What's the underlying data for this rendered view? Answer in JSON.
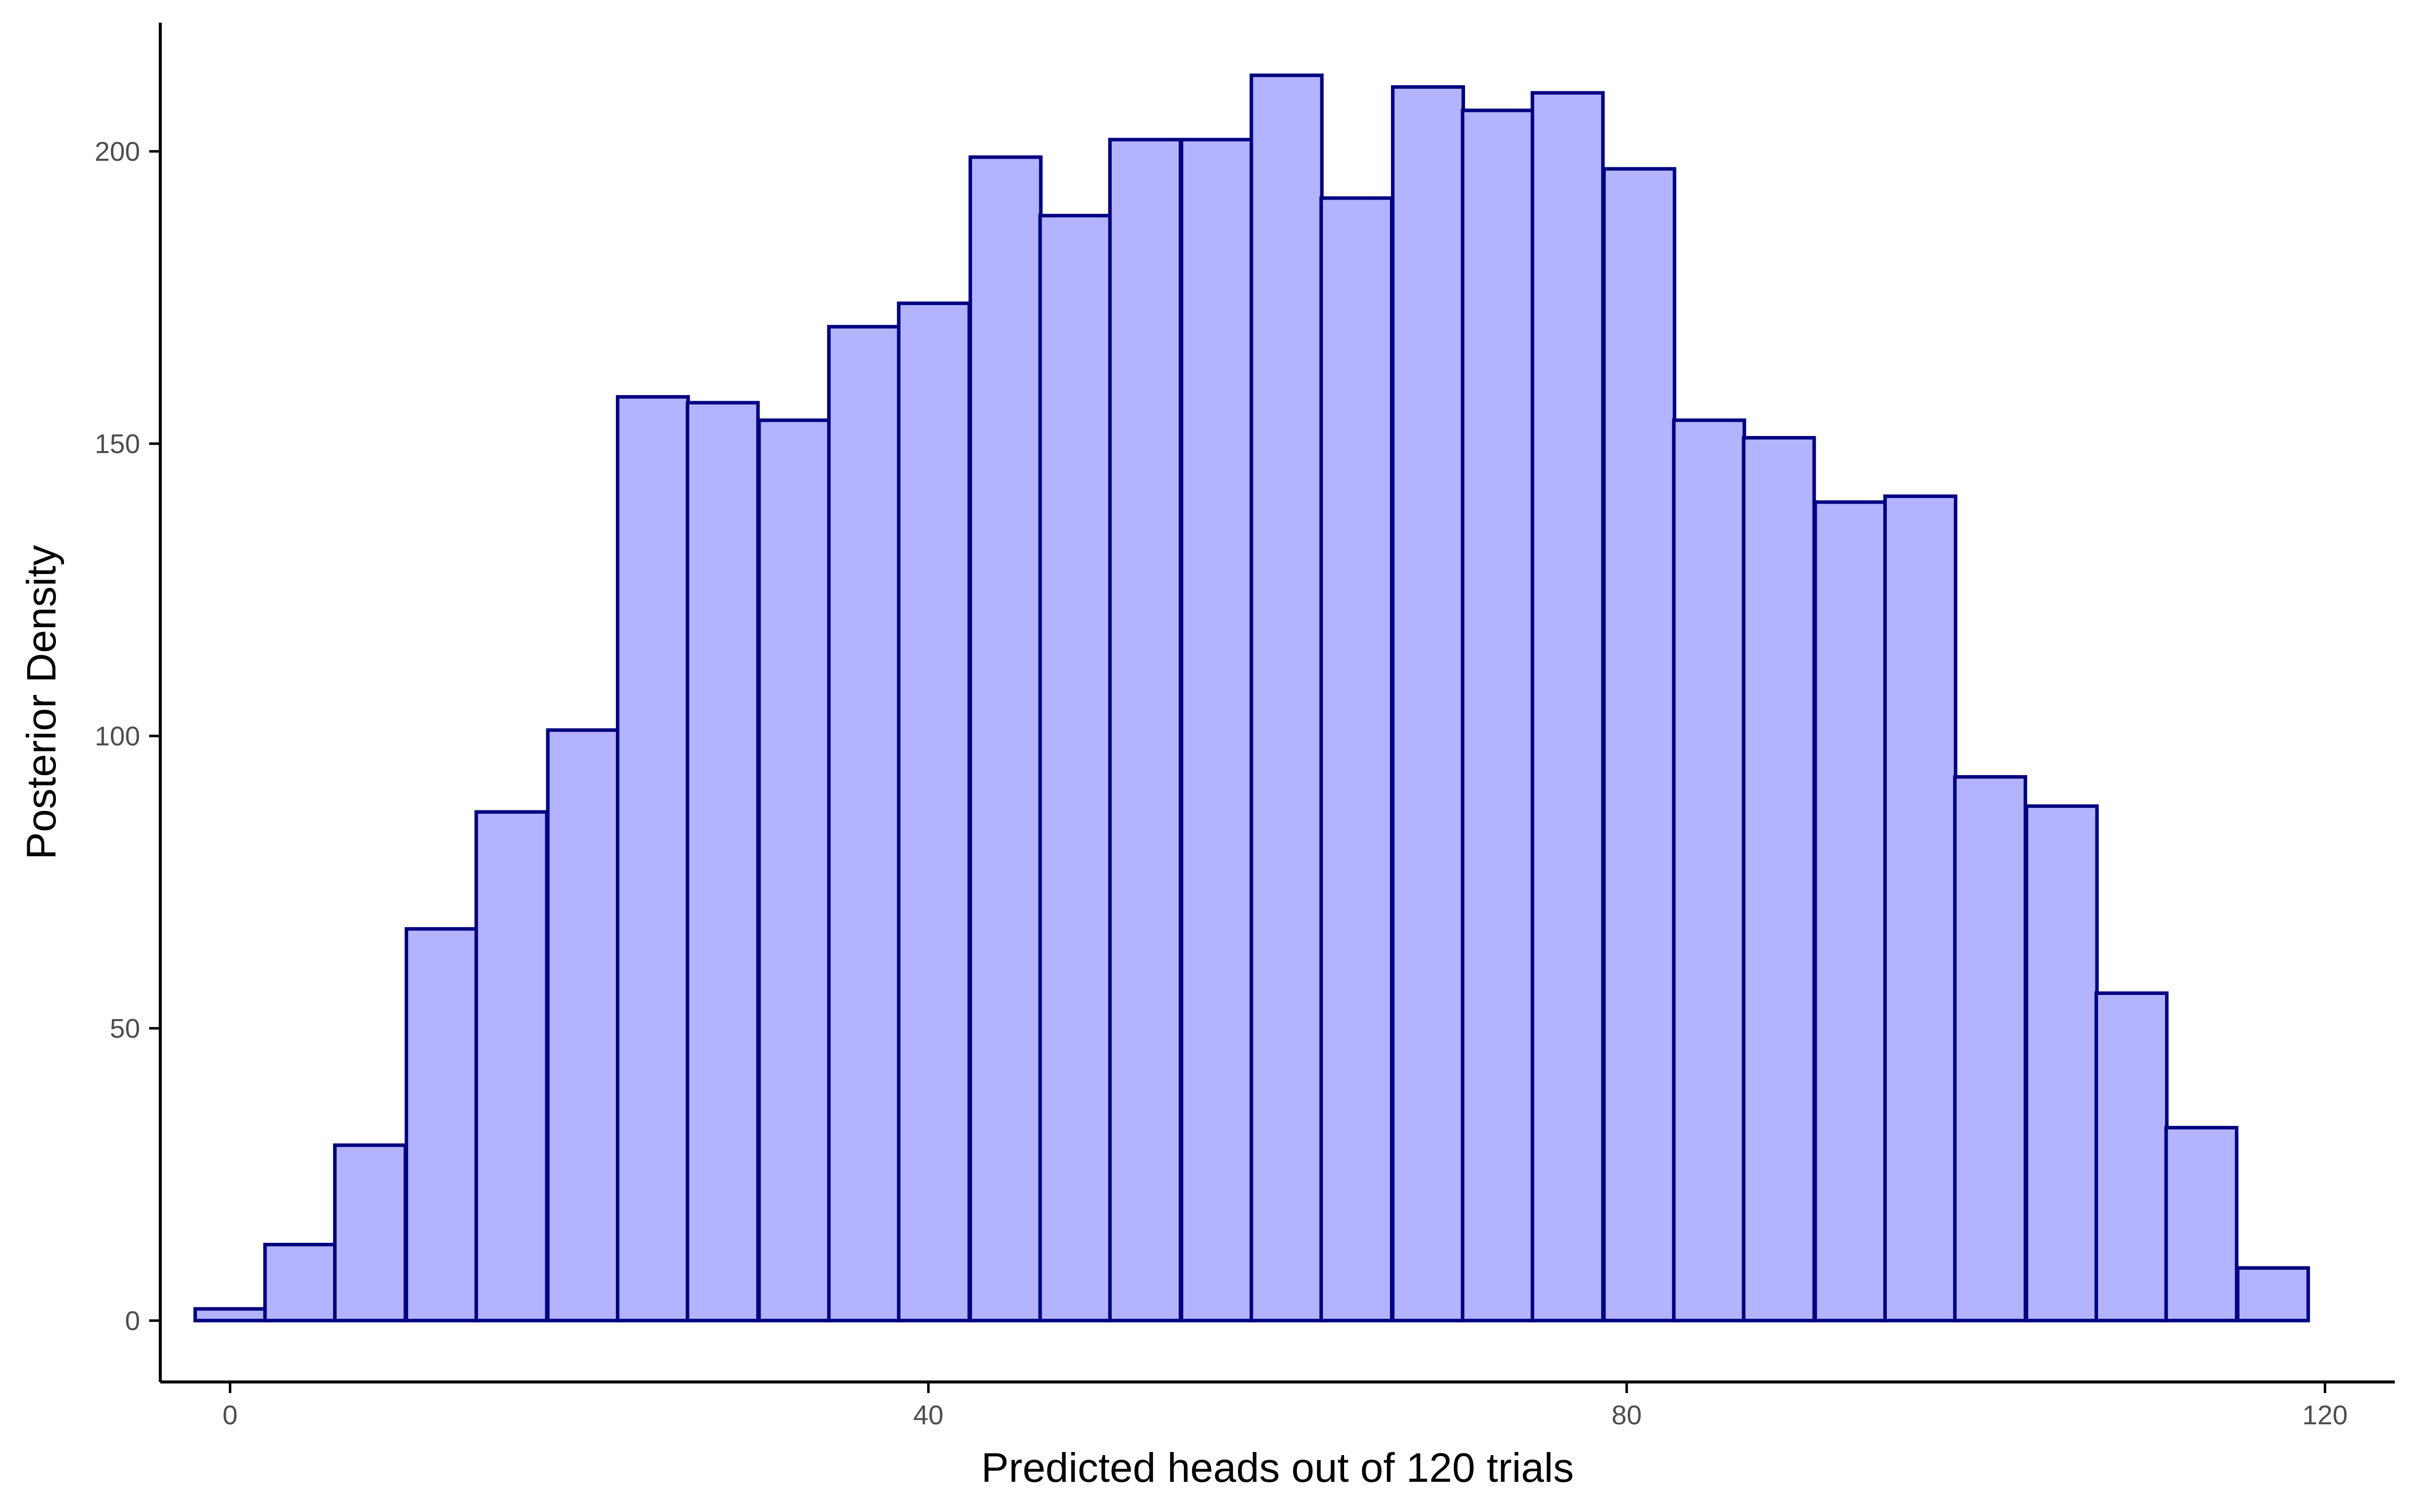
{
  "chart_data": {
    "type": "bar",
    "subtype": "histogram",
    "xlabel": "Predicted heads out of 120 trials",
    "ylabel": "Posterior Density",
    "xlim": [
      -4,
      124
    ],
    "ylim": [
      -10.5,
      222
    ],
    "x_ticks": [
      0,
      40,
      80,
      120
    ],
    "y_ticks": [
      0,
      50,
      100,
      150,
      200
    ],
    "grid": false,
    "legend": "none",
    "bin_width": 4.04,
    "bins": [
      {
        "start": -2.0,
        "value": 2
      },
      {
        "start": 2.0,
        "value": 13
      },
      {
        "start": 6.0,
        "value": 30
      },
      {
        "start": 10.1,
        "value": 67
      },
      {
        "start": 14.1,
        "value": 87
      },
      {
        "start": 18.2,
        "value": 101
      },
      {
        "start": 22.2,
        "value": 158
      },
      {
        "start": 26.2,
        "value": 157
      },
      {
        "start": 30.3,
        "value": 154
      },
      {
        "start": 34.3,
        "value": 170
      },
      {
        "start": 38.3,
        "value": 174
      },
      {
        "start": 42.4,
        "value": 199
      },
      {
        "start": 46.4,
        "value": 189
      },
      {
        "start": 50.4,
        "value": 202
      },
      {
        "start": 54.5,
        "value": 202
      },
      {
        "start": 58.5,
        "value": 213
      },
      {
        "start": 62.5,
        "value": 192
      },
      {
        "start": 66.6,
        "value": 211
      },
      {
        "start": 70.6,
        "value": 207
      },
      {
        "start": 74.6,
        "value": 210
      },
      {
        "start": 78.7,
        "value": 197
      },
      {
        "start": 82.7,
        "value": 154
      },
      {
        "start": 86.7,
        "value": 151
      },
      {
        "start": 90.8,
        "value": 140
      },
      {
        "start": 94.8,
        "value": 141
      },
      {
        "start": 98.8,
        "value": 93
      },
      {
        "start": 102.9,
        "value": 88
      },
      {
        "start": 106.9,
        "value": 56
      },
      {
        "start": 110.9,
        "value": 33
      },
      {
        "start": 115.0,
        "value": 9
      }
    ],
    "colors": {
      "fill": "#b3b3ff",
      "outline": "#000080",
      "axis": "#000000",
      "tick_label": "#4d4d4d"
    }
  }
}
